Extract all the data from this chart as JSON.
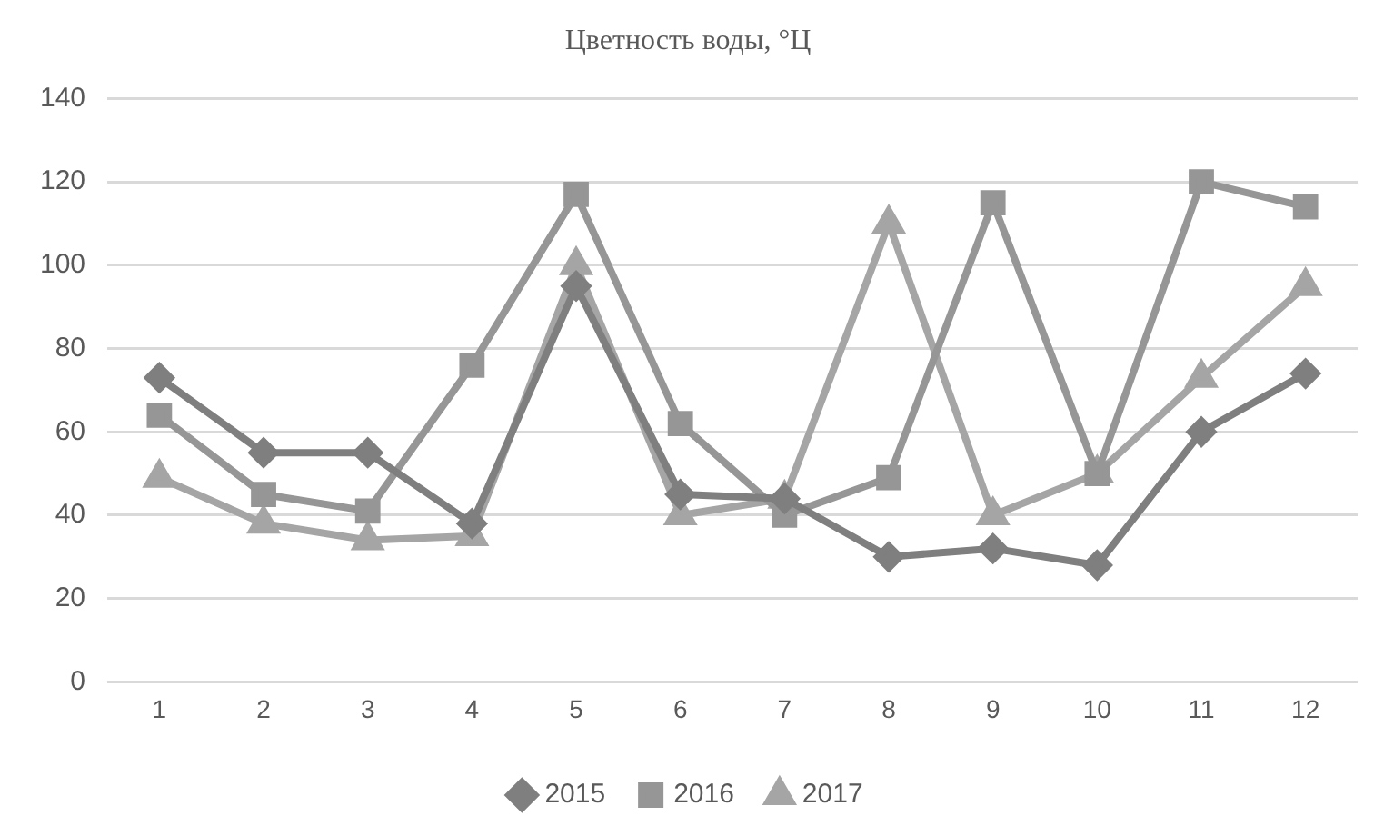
{
  "chart_data": {
    "type": "line",
    "title": "Цветность воды, °Ц",
    "categories": [
      "1",
      "2",
      "3",
      "4",
      "5",
      "6",
      "7",
      "8",
      "9",
      "10",
      "11",
      "12"
    ],
    "series": [
      {
        "name": "2015",
        "color": "#7f7f7f",
        "marker": "diamond",
        "values": [
          73,
          55,
          55,
          38,
          95,
          45,
          44,
          30,
          32,
          28,
          60,
          74
        ]
      },
      {
        "name": "2016",
        "color": "#969696",
        "marker": "square",
        "values": [
          64,
          45,
          41,
          76,
          117,
          62,
          40,
          49,
          115,
          50,
          120,
          114
        ]
      },
      {
        "name": "2017",
        "color": "#a5a5a5",
        "marker": "triangle",
        "values": [
          49,
          38,
          34,
          35,
          100,
          40,
          44,
          110,
          40,
          50,
          73,
          95
        ]
      }
    ],
    "ylim": [
      0,
      140
    ],
    "yticks": [
      0,
      20,
      40,
      60,
      80,
      100,
      120,
      140
    ],
    "grid": "y",
    "legend": "bottom"
  }
}
